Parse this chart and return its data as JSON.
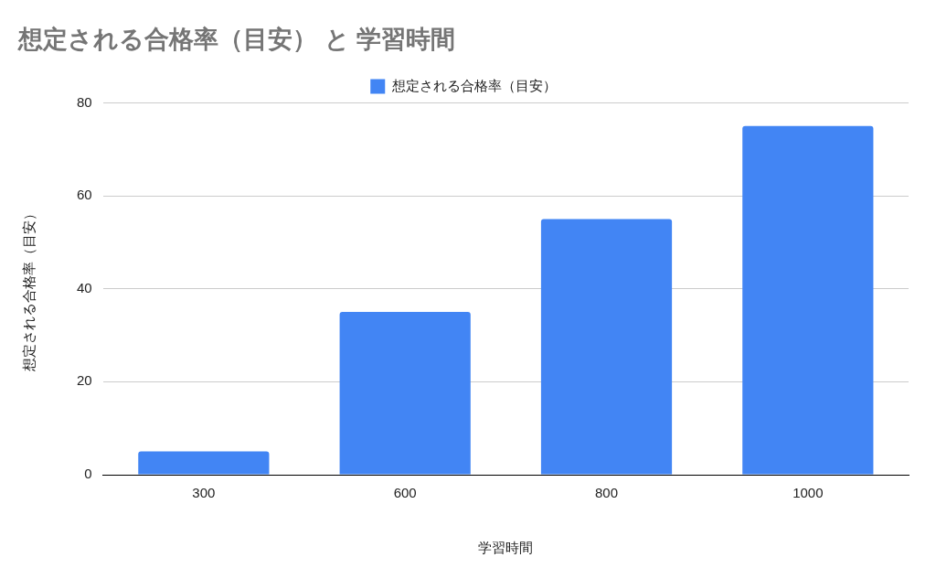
{
  "chart_data": {
    "type": "bar",
    "title": "想定される合格率（目安） と 学習時間",
    "xlabel": "学習時間",
    "ylabel": "想定される合格率（目安）",
    "categories": [
      "300",
      "600",
      "800",
      "1000"
    ],
    "series": [
      {
        "name": "想定される合格率（目安）",
        "color": "#4285f4",
        "values": [
          5,
          35,
          55,
          75
        ]
      }
    ],
    "ylim": [
      0,
      80
    ],
    "yticks": [
      0,
      20,
      40,
      60,
      80
    ],
    "grid": "y",
    "legend": "top"
  }
}
